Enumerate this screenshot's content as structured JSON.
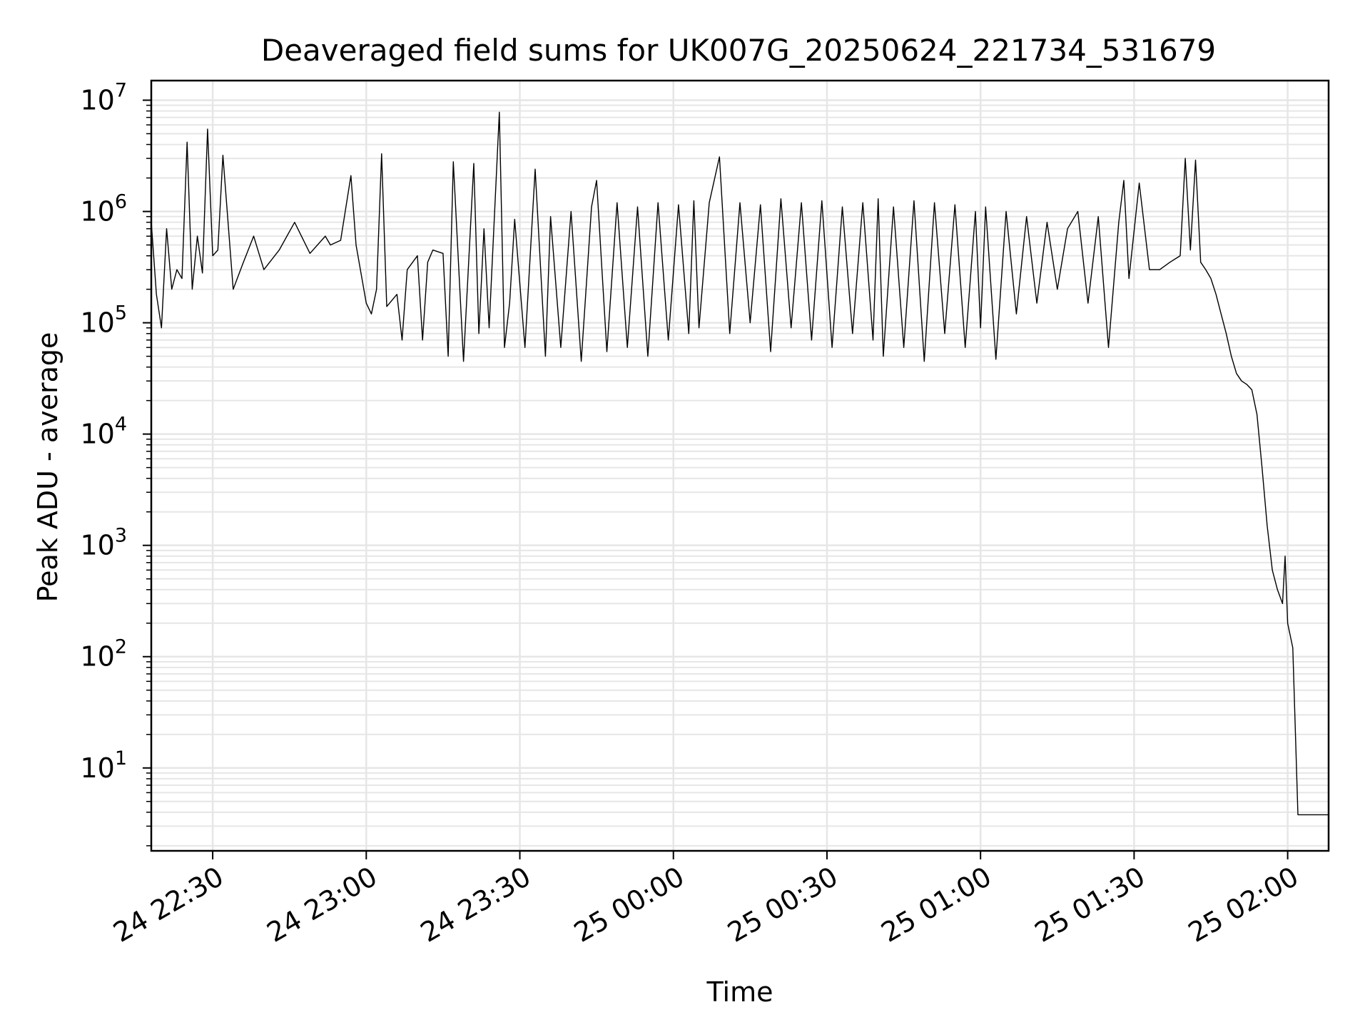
{
  "chart_data": {
    "type": "line",
    "title": "Deaveraged field sums for UK007G_20250624_221734_531679",
    "xlabel": "Time",
    "ylabel": "Peak ADU - average",
    "xlim": [
      "2025-06-24 22:18:00",
      "2025-06-25 02:08:00"
    ],
    "ylim": [
      1.8,
      15000000
    ],
    "yscale": "log",
    "grid": true,
    "line_color": "#000000",
    "x_ticks": [
      {
        "value": "2025-06-24 22:30",
        "label": "24 22:30"
      },
      {
        "value": "2025-06-24 23:00",
        "label": "24 23:00"
      },
      {
        "value": "2025-06-24 23:30",
        "label": "24 23:30"
      },
      {
        "value": "2025-06-25 00:00",
        "label": "25 00:00"
      },
      {
        "value": "2025-06-25 00:30",
        "label": "25 00:30"
      },
      {
        "value": "2025-06-25 01:00",
        "label": "25 01:00"
      },
      {
        "value": "2025-06-25 01:30",
        "label": "25 01:30"
      },
      {
        "value": "2025-06-25 02:00",
        "label": "25 02:00"
      }
    ],
    "y_ticks": [
      {
        "value": 10,
        "base": "10",
        "exp": "1"
      },
      {
        "value": 100,
        "base": "10",
        "exp": "2"
      },
      {
        "value": 1000,
        "base": "10",
        "exp": "3"
      },
      {
        "value": 10000,
        "base": "10",
        "exp": "4"
      },
      {
        "value": 100000,
        "base": "10",
        "exp": "5"
      },
      {
        "value": 1000000,
        "base": "10",
        "exp": "6"
      },
      {
        "value": 10000000,
        "base": "10",
        "exp": "7"
      }
    ],
    "series": [
      {
        "x": [
          "2025-06-24 22:18",
          "2025-06-24 22:19",
          "2025-06-24 22:20",
          "2025-06-24 22:21",
          "2025-06-24 22:22",
          "2025-06-24 22:23",
          "2025-06-24 22:24",
          "2025-06-24 22:25",
          "2025-06-24 22:26",
          "2025-06-24 22:27",
          "2025-06-24 22:28",
          "2025-06-24 22:29",
          "2025-06-24 22:30",
          "2025-06-24 22:31",
          "2025-06-24 22:32",
          "2025-06-24 22:34",
          "2025-06-24 22:36",
          "2025-06-24 22:38",
          "2025-06-24 22:40",
          "2025-06-24 22:43",
          "2025-06-24 22:46",
          "2025-06-24 22:49",
          "2025-06-24 22:52",
          "2025-06-24 22:53",
          "2025-06-24 22:55",
          "2025-06-24 22:57",
          "2025-06-24 22:58",
          "2025-06-24 23:00",
          "2025-06-24 23:01",
          "2025-06-24 23:02",
          "2025-06-24 23:03",
          "2025-06-24 23:04",
          "2025-06-24 23:06",
          "2025-06-24 23:07",
          "2025-06-24 23:08",
          "2025-06-24 23:10",
          "2025-06-24 23:11",
          "2025-06-24 23:12",
          "2025-06-24 23:13",
          "2025-06-24 23:15",
          "2025-06-24 23:16",
          "2025-06-24 23:17",
          "2025-06-24 23:19",
          "2025-06-24 23:21",
          "2025-06-24 23:22",
          "2025-06-24 23:23",
          "2025-06-24 23:24",
          "2025-06-24 23:26",
          "2025-06-24 23:27",
          "2025-06-24 23:28",
          "2025-06-24 23:29",
          "2025-06-24 23:31",
          "2025-06-24 23:33",
          "2025-06-24 23:35",
          "2025-06-24 23:36",
          "2025-06-24 23:38",
          "2025-06-24 23:40",
          "2025-06-24 23:42",
          "2025-06-24 23:44",
          "2025-06-24 23:45",
          "2025-06-24 23:47",
          "2025-06-24 23:49",
          "2025-06-24 23:51",
          "2025-06-24 23:53",
          "2025-06-24 23:55",
          "2025-06-24 23:57",
          "2025-06-24 23:59",
          "2025-06-25 00:01",
          "2025-06-25 00:03",
          "2025-06-25 00:04",
          "2025-06-25 00:05",
          "2025-06-25 00:07",
          "2025-06-25 00:09",
          "2025-06-25 00:11",
          "2025-06-25 00:13",
          "2025-06-25 00:15",
          "2025-06-25 00:17",
          "2025-06-25 00:19",
          "2025-06-25 00:21",
          "2025-06-25 00:23",
          "2025-06-25 00:25",
          "2025-06-25 00:27",
          "2025-06-25 00:29",
          "2025-06-25 00:31",
          "2025-06-25 00:33",
          "2025-06-25 00:35",
          "2025-06-25 00:37",
          "2025-06-25 00:39",
          "2025-06-25 00:40",
          "2025-06-25 00:41",
          "2025-06-25 00:43",
          "2025-06-25 00:45",
          "2025-06-25 00:47",
          "2025-06-25 00:49",
          "2025-06-25 00:51",
          "2025-06-25 00:53",
          "2025-06-25 00:55",
          "2025-06-25 00:57",
          "2025-06-25 00:59",
          "2025-06-25 01:00",
          "2025-06-25 01:01",
          "2025-06-25 01:03",
          "2025-06-25 01:05",
          "2025-06-25 01:07",
          "2025-06-25 01:09",
          "2025-06-25 01:11",
          "2025-06-25 01:13",
          "2025-06-25 01:15",
          "2025-06-25 01:17",
          "2025-06-25 01:19",
          "2025-06-25 01:21",
          "2025-06-25 01:23",
          "2025-06-25 01:25",
          "2025-06-25 01:27",
          "2025-06-25 01:28",
          "2025-06-25 01:29",
          "2025-06-25 01:31",
          "2025-06-25 01:33",
          "2025-06-25 01:35",
          "2025-06-25 01:37",
          "2025-06-25 01:39",
          "2025-06-25 01:40",
          "2025-06-25 01:41",
          "2025-06-25 01:42",
          "2025-06-25 01:43",
          "2025-06-25 01:44",
          "2025-06-25 01:45",
          "2025-06-25 01:46",
          "2025-06-25 01:47",
          "2025-06-25 01:48",
          "2025-06-25 01:49",
          "2025-06-25 01:50",
          "2025-06-25 01:51",
          "2025-06-25 01:52",
          "2025-06-25 01:53",
          "2025-06-25 01:54",
          "2025-06-25 01:55",
          "2025-06-25 01:56",
          "2025-06-25 01:57",
          "2025-06-25 01:58",
          "2025-06-25 01:59",
          "2025-06-25 01:59:30",
          "2025-06-25 02:00",
          "2025-06-25 02:01",
          "2025-06-25 02:02",
          "2025-06-25 02:03",
          "2025-06-25 02:04",
          "2025-06-25 02:05",
          "2025-06-25 02:06",
          "2025-06-25 02:07",
          "2025-06-25 02:08"
        ],
        "y": [
          800000,
          180000,
          90000,
          700000,
          200000,
          300000,
          250000,
          4200000,
          200000,
          600000,
          280000,
          5500000,
          400000,
          450000,
          3200000,
          200000,
          350000,
          600000,
          300000,
          450000,
          800000,
          420000,
          600000,
          500000,
          550000,
          2100000,
          500000,
          150000,
          120000,
          200000,
          3300000,
          140000,
          180000,
          70000,
          300000,
          400000,
          70000,
          350000,
          450000,
          420000,
          50000,
          2800000,
          45000,
          2700000,
          80000,
          700000,
          90000,
          7800000,
          60000,
          150000,
          850000,
          60000,
          2400000,
          50000,
          900000,
          60000,
          1000000,
          45000,
          1100000,
          1900000,
          55000,
          1200000,
          60000,
          1100000,
          50000,
          1200000,
          70000,
          1150000,
          80000,
          1250000,
          90000,
          1200000,
          3100000,
          80000,
          1200000,
          100000,
          1150000,
          55000,
          1300000,
          90000,
          1200000,
          70000,
          1250000,
          60000,
          1100000,
          80000,
          1200000,
          70000,
          1300000,
          50000,
          1100000,
          60000,
          1250000,
          45000,
          1200000,
          80000,
          1150000,
          60000,
          1000000,
          90000,
          1100000,
          47000,
          1000000,
          120000,
          900000,
          150000,
          800000,
          200000,
          700000,
          1000000,
          150000,
          900000,
          60000,
          800000,
          1900000,
          250000,
          1800000,
          300000,
          300000,
          350000,
          400000,
          3000000,
          450000,
          2900000,
          350000,
          300000,
          250000,
          180000,
          120000,
          80000,
          50000,
          35000,
          30000,
          28000,
          25000,
          15000,
          5000,
          1500,
          600,
          400,
          300,
          800,
          200,
          120,
          3.8,
          3.8,
          3.8,
          3.8,
          3.8,
          3.8,
          3.8
        ]
      }
    ]
  }
}
